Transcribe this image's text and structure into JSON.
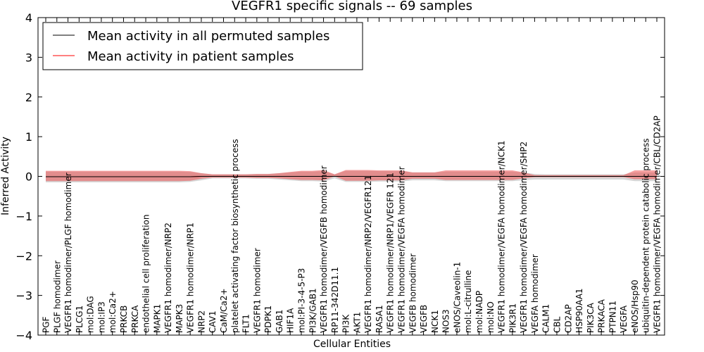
{
  "chart_data": {
    "type": "area",
    "title": "VEGFR1 specific signals -- 69 samples",
    "xlabel": "Cellular Entities",
    "ylabel": "Inferred Activity",
    "ylim": [
      -4,
      4
    ],
    "yticks": [
      -4,
      -3,
      -2,
      -1,
      0,
      1,
      2,
      3,
      4
    ],
    "yticklabels": [
      "−4",
      "−3",
      "−2",
      "−1",
      "0",
      "1",
      "2",
      "3",
      "4"
    ],
    "grid": false,
    "legend_position": "top-left",
    "categories": [
      "PGF",
      "PLGF homodimer",
      "VEGFR1 homodimer/PLGF homodimer",
      "PLCG1",
      "mol:DAG",
      "mol:IP3",
      "mol:Ca2+",
      "PRKCB",
      "PRKCA",
      "endothelial cell proliferation",
      "MAPK1",
      "VEGFR1 homodimer/NRP2",
      "MAPK3",
      "VEGFR1 homodimer/NRP1",
      "NRP2",
      "CAV1",
      "CaM/Ca2+",
      "platelet activating factor biosynthetic process",
      "FLT1",
      "VEGFR1 homodimer",
      "PDPK1",
      "GAB1",
      "HIF1A",
      "mol:PI-3-4-5-P3",
      "PI3K/GAB1",
      "VEGFR1 homodimer/VEGFB homodimer",
      "RP11-342D11.1",
      "PI3K",
      "AKT1",
      "VEGFR1 homodimer/NRP2/VEGFR121",
      "RASA1",
      "VEGFR1 homodimer/NRP1/VEGFR 121",
      "VEGFR1 homodimer/VEGFA homodimer",
      "VEGFB homodimer",
      "VEGFB",
      "NCK1",
      "NOS3",
      "eNOS/Caveolin-1",
      "mol:L-citrulline",
      "mol:NADP",
      "mol:NO",
      "VEGFR1 homodimer/VEGFA homodimer/NCK1",
      "PIK3R1",
      "VEGFR1 homodimer/VEGFA homodimer/SHP2",
      "VEGFA homodimer",
      "CALM1",
      "CBL",
      "CD2AP",
      "HSP90AA1",
      "PIK3CA",
      "PRKACA",
      "PTPN11",
      "VEGFA",
      "eNOS/Hsp90",
      "ubiquitin-dependent protein catabolic process",
      "VEGFR1 homodimer/VEGFA homodimer/CBL/CD2AP"
    ],
    "series": [
      {
        "name": "Mean activity in all permuted samples",
        "color": "#000000",
        "values": [
          -0.01,
          -0.01,
          -0.01,
          -0.01,
          -0.01,
          -0.01,
          -0.01,
          -0.01,
          -0.01,
          -0.01,
          -0.01,
          -0.01,
          -0.01,
          -0.01,
          0,
          0,
          0,
          0,
          0,
          0,
          0,
          0,
          0,
          0,
          0,
          0,
          0,
          0,
          0,
          0,
          0,
          0,
          0,
          0,
          0,
          0,
          0,
          0,
          0,
          0,
          0,
          0,
          0,
          0,
          0,
          0,
          0,
          0,
          0,
          0,
          0,
          0,
          0,
          0,
          0,
          0
        ],
        "band_lower": [
          -0.15,
          -0.15,
          -0.15,
          -0.15,
          -0.15,
          -0.15,
          -0.15,
          -0.15,
          -0.15,
          -0.15,
          -0.15,
          -0.15,
          -0.15,
          -0.14,
          -0.1,
          -0.05,
          -0.05,
          -0.05,
          -0.05,
          -0.06,
          -0.06,
          -0.08,
          -0.1,
          -0.12,
          -0.12,
          -0.13,
          -0.05,
          -0.14,
          -0.14,
          -0.14,
          -0.13,
          -0.13,
          -0.13,
          -0.1,
          -0.1,
          -0.1,
          -0.12,
          -0.12,
          -0.12,
          -0.12,
          -0.12,
          -0.12,
          -0.12,
          -0.1,
          -0.08,
          -0.08,
          -0.08,
          -0.08,
          -0.08,
          -0.08,
          -0.08,
          -0.08,
          -0.08,
          -0.12,
          -0.12,
          -0.12
        ],
        "band_upper": [
          0.12,
          0.12,
          0.12,
          0.12,
          0.12,
          0.12,
          0.12,
          0.12,
          0.12,
          0.12,
          0.12,
          0.12,
          0.12,
          0.11,
          0.08,
          0.05,
          0.05,
          0.05,
          0.05,
          0.06,
          0.06,
          0.08,
          0.1,
          0.12,
          0.12,
          0.13,
          0.05,
          0.14,
          0.14,
          0.14,
          0.13,
          0.13,
          0.13,
          0.1,
          0.1,
          0.1,
          0.12,
          0.12,
          0.12,
          0.12,
          0.12,
          0.12,
          0.12,
          0.1,
          0.06,
          0.05,
          0.05,
          0.05,
          0.05,
          0.05,
          0.05,
          0.05,
          0.05,
          0.1,
          0.1,
          0.1
        ]
      },
      {
        "name": "Mean activity in patient samples",
        "color": "#ff0000",
        "values": [
          -0.01,
          -0.01,
          -0.01,
          -0.01,
          -0.01,
          -0.01,
          -0.01,
          -0.01,
          -0.01,
          -0.01,
          -0.01,
          -0.01,
          -0.01,
          -0.01,
          0,
          0,
          0,
          0,
          0,
          0,
          0,
          0,
          0,
          0,
          0,
          0,
          0,
          0,
          0,
          0,
          0,
          0,
          0,
          0,
          0,
          0,
          0,
          0,
          0,
          0,
          0,
          0,
          0,
          0,
          0,
          0,
          0,
          0,
          0,
          0,
          0,
          0,
          0,
          0,
          0,
          0
        ],
        "band_lower": [
          -0.12,
          -0.12,
          -0.12,
          -0.12,
          -0.12,
          -0.12,
          -0.12,
          -0.12,
          -0.12,
          -0.12,
          -0.12,
          -0.12,
          -0.12,
          -0.11,
          -0.06,
          -0.03,
          -0.03,
          -0.03,
          -0.03,
          -0.04,
          -0.04,
          -0.05,
          -0.07,
          -0.09,
          -0.09,
          -0.1,
          0,
          -0.11,
          -0.11,
          -0.11,
          -0.1,
          -0.1,
          -0.1,
          -0.06,
          -0.06,
          -0.06,
          -0.09,
          -0.09,
          -0.09,
          -0.09,
          -0.09,
          -0.09,
          -0.09,
          -0.05,
          -0.02,
          -0.02,
          -0.02,
          -0.02,
          -0.02,
          -0.02,
          -0.02,
          -0.02,
          -0.02,
          -0.07,
          -0.07,
          -0.07
        ],
        "band_upper": [
          0.14,
          0.14,
          0.14,
          0.14,
          0.14,
          0.14,
          0.14,
          0.14,
          0.14,
          0.14,
          0.14,
          0.14,
          0.14,
          0.13,
          0.08,
          0.05,
          0.05,
          0.05,
          0.05,
          0.06,
          0.06,
          0.08,
          0.11,
          0.14,
          0.14,
          0.16,
          0.05,
          0.16,
          0.16,
          0.16,
          0.15,
          0.15,
          0.15,
          0.1,
          0.1,
          0.1,
          0.15,
          0.15,
          0.15,
          0.15,
          0.15,
          0.15,
          0.15,
          0.1,
          0.03,
          0.03,
          0.03,
          0.03,
          0.03,
          0.03,
          0.03,
          0.03,
          0.03,
          0.15,
          0.15,
          0.15
        ]
      }
    ]
  }
}
